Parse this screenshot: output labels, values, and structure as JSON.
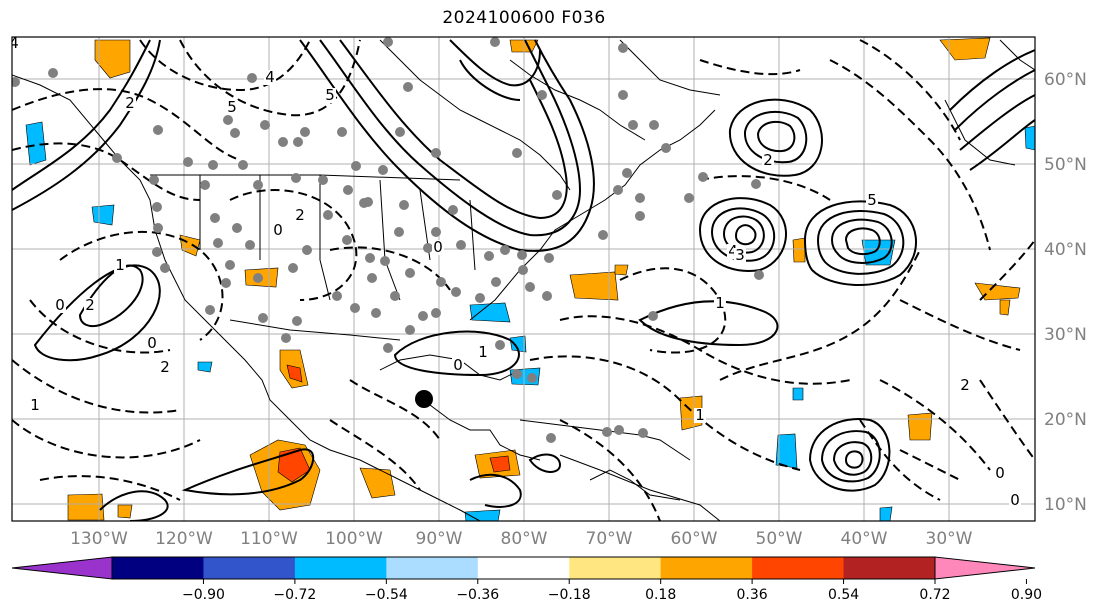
{
  "title": "2024100600 F036",
  "latitude_labels": [
    "60°N",
    "50°N",
    "40°N",
    "30°N",
    "20°N",
    "10°N"
  ],
  "longitude_labels": [
    "130°W",
    "120°W",
    "110°W",
    "100°W",
    "90°W",
    "80°W",
    "70°W",
    "60°W",
    "50°W",
    "40°W",
    "30°W"
  ],
  "colorbar": {
    "colors": [
      "#9933cc",
      "#000080",
      "#3355cc",
      "#00bbff",
      "#aaddff",
      "#ffffff",
      "#ffe680",
      "#ffa500",
      "#ff4500",
      "#b22222",
      "#ff88bb"
    ],
    "tick_labels": [
      "−0.90",
      "−0.72",
      "−0.54",
      "−0.36",
      "−0.18",
      "0.18",
      "0.36",
      "0.54",
      "0.72",
      "0.90"
    ]
  },
  "contour_labels": [
    "4",
    "2",
    "5",
    "4",
    "5",
    "2",
    "4",
    "5",
    "1",
    "2",
    "0",
    "1",
    "0",
    "2",
    "1",
    "0",
    "2",
    "0",
    "0",
    "1",
    "3",
    "0",
    "2",
    "1",
    "0"
  ],
  "markers": {
    "dot_color": "#808080",
    "center_color": "#000000"
  }
}
